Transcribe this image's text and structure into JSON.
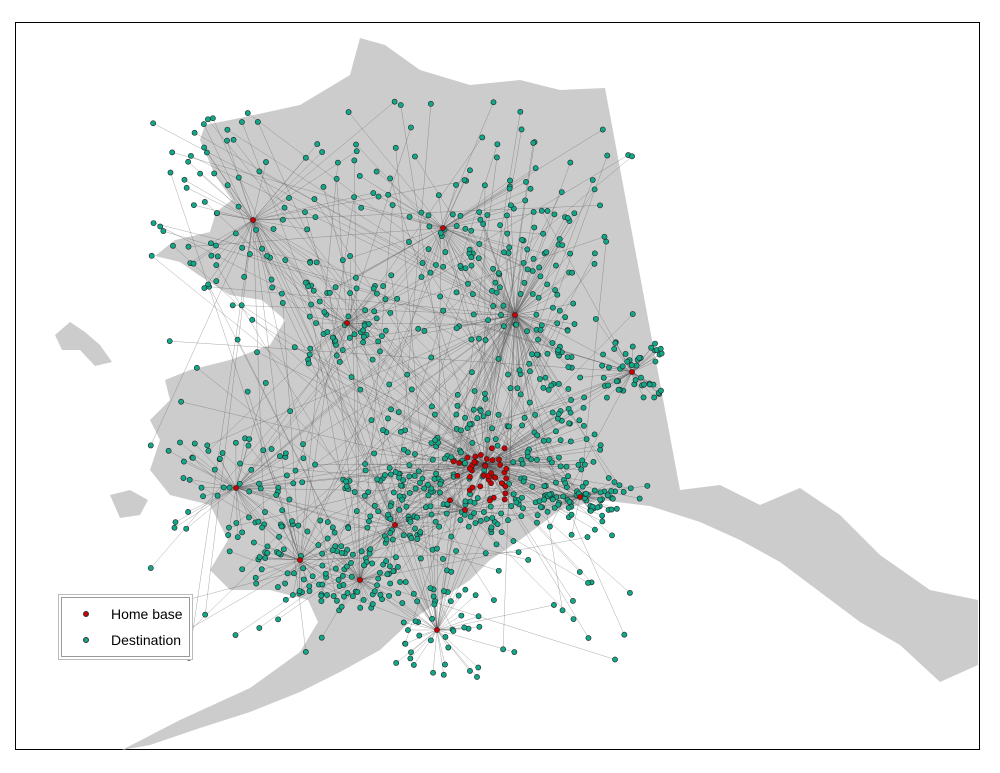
{
  "map": {
    "land_color": "#cccccc",
    "route_color": "#555555",
    "home_base_color": "#cc0000",
    "destination_color": "#11a88a"
  },
  "legend": {
    "items": [
      {
        "label": "Home base",
        "color": "#cc0000"
      },
      {
        "label": "Destination",
        "color": "#11a88a"
      }
    ]
  }
}
